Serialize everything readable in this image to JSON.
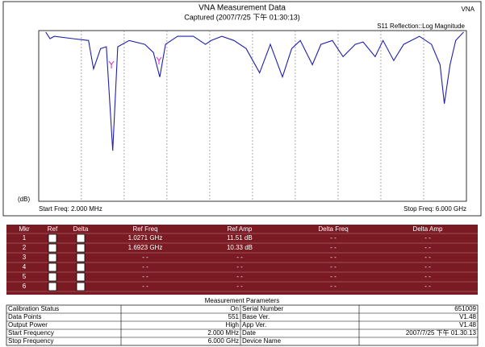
{
  "header": {
    "title": "VNA Measurement Data",
    "captured": "Captured  (2007/7/25 下午 01:30:13)",
    "badge": "VNA"
  },
  "chart_data": {
    "type": "line",
    "trace_label": "S11 Reflection::Log Magnitude",
    "y_label": "(dB)",
    "start_label": "Start Freq: 2.000 MHz",
    "stop_label": "Stop Freq: 6.000 GHz",
    "color": "#2020b0",
    "x": [
      0.1,
      0.16,
      0.22,
      0.48,
      0.7,
      0.77,
      0.87,
      0.95,
      1.04,
      1.11,
      1.27,
      1.49,
      1.61,
      1.7,
      1.78,
      1.95,
      2.17,
      2.34,
      2.42,
      2.57,
      2.74,
      2.91,
      3.1,
      3.25,
      3.42,
      3.55,
      3.67,
      3.84,
      3.96,
      4.12,
      4.27,
      4.44,
      4.55,
      4.72,
      4.83,
      4.98,
      5.12,
      5.34,
      5.51,
      5.63,
      5.69,
      5.77,
      5.85,
      5.96
    ],
    "values": [
      0.5,
      2.7,
      1.9,
      2.7,
      3.3,
      12.8,
      6.0,
      5.4,
      40.1,
      5.4,
      3.3,
      4.6,
      7.3,
      15.5,
      4.6,
      1.9,
      1.9,
      4.6,
      3.3,
      1.9,
      3.3,
      6.0,
      14.1,
      4.6,
      15.5,
      6.0,
      3.3,
      11.4,
      4.6,
      3.3,
      8.7,
      4.6,
      3.8,
      8.7,
      3.3,
      10.0,
      4.6,
      1.9,
      4.6,
      11.4,
      24.4,
      11.4,
      3.3,
      0.5
    ],
    "xlim": [
      0.002,
      6
    ],
    "ylim": [
      57,
      0
    ],
    "xticks": [
      0.6,
      1.2,
      1.8,
      2.4,
      3.0,
      3.6,
      4.2,
      4.8,
      5.4
    ],
    "grid": true
  },
  "marker_table": {
    "columns": [
      "Mkr",
      "Ref",
      "Delta",
      "Ref Freq",
      "Ref Amp",
      "Delta Freq",
      "Delta Amp"
    ],
    "rows": [
      [
        "1",
        "1.0271 GHz",
        "11.51 dB",
        "- -",
        "- -"
      ],
      [
        "2",
        "1.6923 GHz",
        "10.33 dB",
        "- -",
        "- -"
      ],
      [
        "3",
        "- -",
        "- -",
        "- -",
        "- -"
      ],
      [
        "4",
        "- -",
        "- -",
        "- -",
        "- -"
      ],
      [
        "5",
        "- -",
        "- -",
        "- -",
        "- -"
      ],
      [
        "6",
        "- -",
        "- -",
        "- -",
        "- -"
      ]
    ]
  },
  "parameters": {
    "title": "Measurement Parameters",
    "rows": [
      [
        "Calibration Status",
        "On",
        "Serial Number",
        "651009"
      ],
      [
        "Data Points",
        "551",
        "Base Ver.",
        "V1.48"
      ],
      [
        "Output Power",
        "High",
        "App Ver.",
        "V1.48"
      ],
      [
        "Start Frequency",
        "2.000 MHz",
        "Date",
        "2007/7/25 下午 01.30.13"
      ],
      [
        "Stop Frequency",
        "6.000 GHz",
        "Device Name"
      ]
    ]
  }
}
